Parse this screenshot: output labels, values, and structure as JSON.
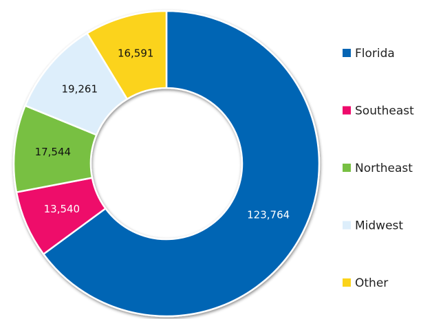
{
  "chart_data": {
    "type": "donut",
    "categories": [
      "Florida",
      "Southeast",
      "Northeast",
      "Midwest",
      "Other"
    ],
    "values": [
      123764,
      13540,
      17544,
      19261,
      16591
    ],
    "value_labels": [
      "123,764",
      "13,540",
      "17,544",
      "19,261",
      "16,591"
    ],
    "colors": [
      "#0565b4",
      "#ee0a6b",
      "#78c043",
      "#ddeefb",
      "#fbd31a"
    ],
    "legend": "right"
  }
}
